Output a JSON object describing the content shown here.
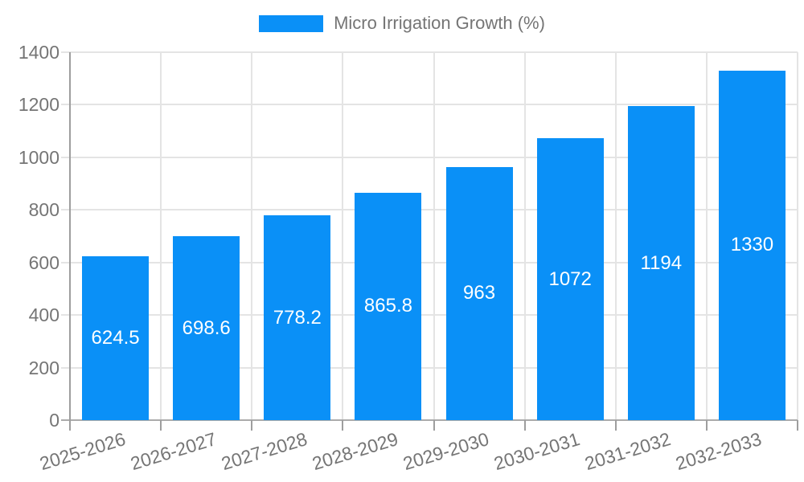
{
  "legend": {
    "label": "Micro Irrigation Growth (%)",
    "swatch_color": "#0a90f7"
  },
  "chart_data": {
    "type": "bar",
    "title": "Micro Irrigation Growth (%)",
    "categories": [
      "2025-2026",
      "2026-2027",
      "2027-2028",
      "2028-2029",
      "2029-2030",
      "2030-2031",
      "2031-2032",
      "2032-2033"
    ],
    "values": [
      624.5,
      698.6,
      778.2,
      865.8,
      963,
      1072,
      1194,
      1330
    ],
    "value_labels": [
      "624.5",
      "698.6",
      "778.2",
      "865.8",
      "963",
      "1072",
      "1194",
      "1330"
    ],
    "xlabel": "",
    "ylabel": "",
    "ylim": [
      0,
      1400
    ],
    "yticks": [
      0,
      200,
      400,
      600,
      800,
      1000,
      1200,
      1400
    ],
    "grid": true,
    "legend_position": "top-center",
    "xtick_rotation_deg": -17,
    "colors": {
      "bar": "#0a90f7",
      "bar_value_text": "#ffffff",
      "axis_text": "#757575",
      "gridline": "#e4e4e4",
      "axis_line": "#9e9e9e",
      "background": "#ffffff"
    }
  }
}
